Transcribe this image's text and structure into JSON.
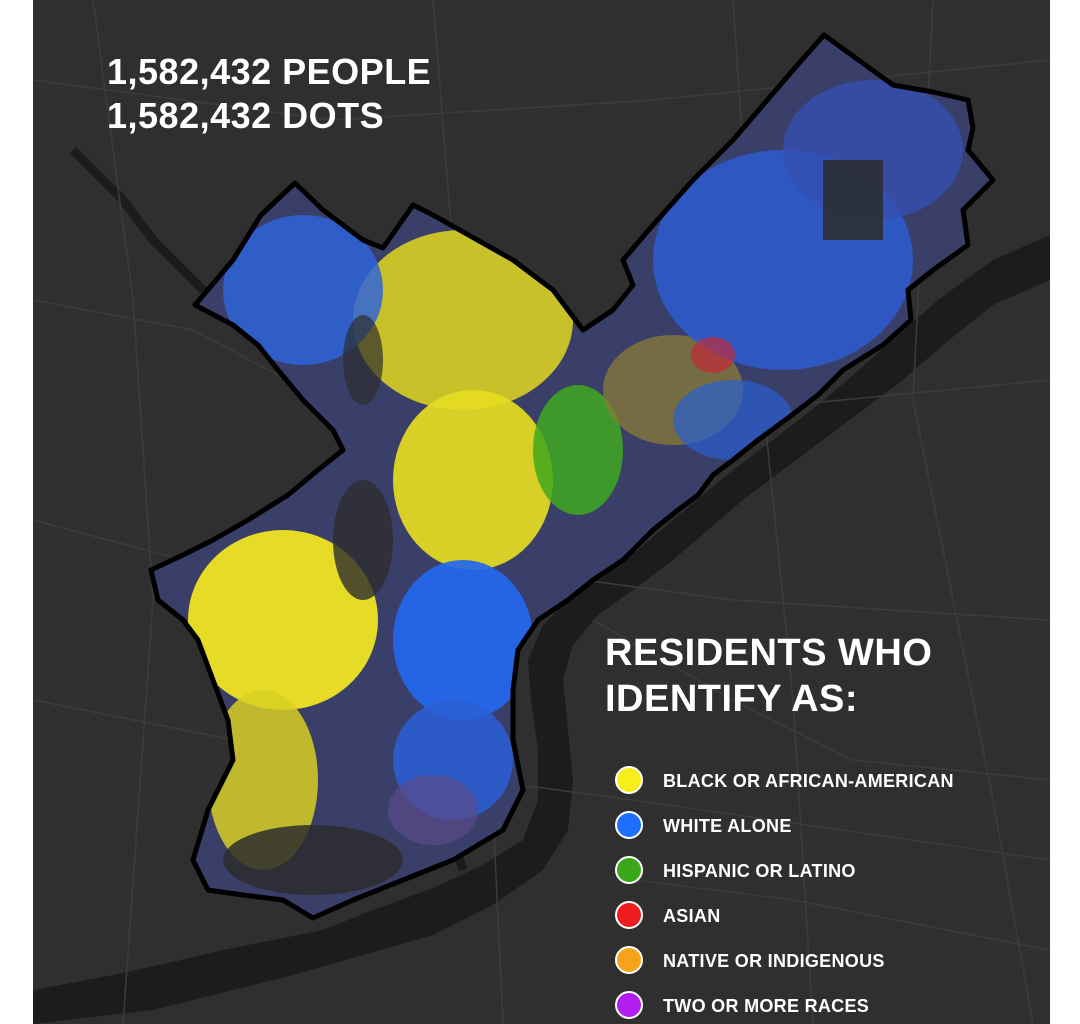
{
  "headline": {
    "people": "1,582,432 PEOPLE",
    "dots": "1,582,432 DOTS"
  },
  "legend": {
    "title_line1": "RESIDENTS WHO",
    "title_line2": "IDENTIFY AS:",
    "items": [
      {
        "label": "BLACK OR AFRICAN-AMERICAN",
        "color": "#f7ef1b"
      },
      {
        "label": "WHITE ALONE",
        "color": "#1f6fff"
      },
      {
        "label": "HISPANIC OR LATINO",
        "color": "#3aa81a"
      },
      {
        "label": "ASIAN",
        "color": "#ee1c1c"
      },
      {
        "label": "NATIVE OR INDIGENOUS",
        "color": "#f7a21b"
      },
      {
        "label": "TWO OR MORE RACES",
        "color": "#b21ef0"
      }
    ]
  },
  "map": {
    "background_color": "#2f2f2f",
    "river_color": "#1c1c1c",
    "boundary_color": "#000000",
    "road_color": "#3d3d3d"
  }
}
